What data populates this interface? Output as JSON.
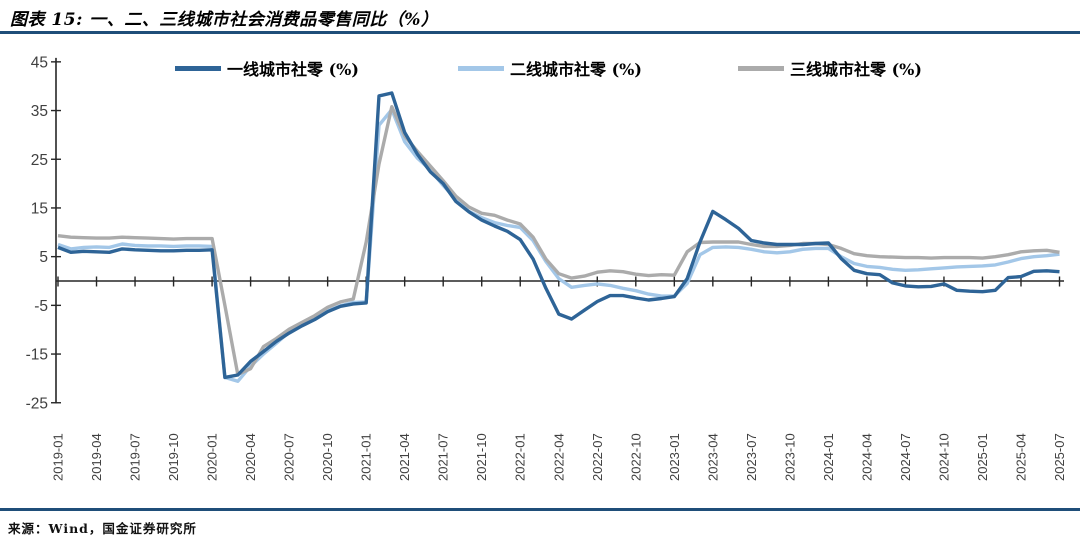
{
  "header": {
    "title": "图表 15:  一、二、三线城市社会消费品零售同比（%）"
  },
  "footer": {
    "source": "来源：Wind，国金证券研究所"
  },
  "colors": {
    "rule": "#1F4E79",
    "axis_line": "#262626",
    "tick_label": "#404040",
    "background": "#FFFFFF"
  },
  "chart_data": {
    "type": "line",
    "title": "一、二、三线城市社会消费品零售同比（%）",
    "xlabel": "",
    "ylabel": "",
    "ylim": [
      -25,
      45
    ],
    "y_ticks": [
      45,
      35,
      25,
      15,
      5,
      -5,
      -15,
      -25
    ],
    "grid": false,
    "legend_position": "top",
    "x_start": "2019-01",
    "x_end": "2025-07",
    "x_monthly_points": 79,
    "tick_every_months": 3,
    "x_tick_labels": [
      "2019-01",
      "2019-04",
      "2019-07",
      "2019-10",
      "2020-01",
      "2020-04",
      "2020-07",
      "2020-10",
      "2021-01",
      "2021-04",
      "2021-07",
      "2021-10",
      "2022-01",
      "2022-04",
      "2022-07",
      "2022-10",
      "2023-01",
      "2023-04",
      "2023-07",
      "2023-10",
      "2024-01",
      "2024-04",
      "2024-07",
      "2024-10",
      "2025-01",
      "2025-04",
      "2025-07"
    ],
    "series": [
      {
        "name": "一线城市社零 (%)",
        "color": "#2E6497",
        "z": 3,
        "values": [
          6.9,
          5.9,
          6.1,
          6.0,
          5.9,
          6.6,
          6.4,
          6.3,
          6.2,
          6.2,
          6.3,
          6.3,
          6.4,
          -19.8,
          -19.3,
          -16.5,
          -14.5,
          -12.4,
          -10.7,
          -9.2,
          -7.9,
          -6.3,
          -5.2,
          -4.7,
          -4.5,
          38.0,
          38.6,
          30.5,
          26.0,
          22.4,
          20.0,
          16.3,
          14.2,
          12.5,
          11.3,
          10.2,
          8.5,
          4.5,
          -1.5,
          -6.8,
          -7.8,
          -6.0,
          -4.2,
          -3.0,
          -3.0,
          -3.5,
          -3.9,
          -3.6,
          -3.2,
          0.5,
          8.0,
          14.3,
          12.6,
          10.8,
          8.3,
          7.8,
          7.5,
          7.5,
          7.5,
          7.7,
          7.8,
          4.6,
          2.2,
          1.5,
          1.3,
          -0.4,
          -1.0,
          -1.2,
          -1.1,
          -0.6,
          -1.9,
          -2.1,
          -2.2,
          -1.9,
          0.7,
          0.9,
          2.0,
          2.1,
          1.9
        ]
      },
      {
        "name": "二线城市社零 (%)",
        "color": "#A3C7E8",
        "z": 1,
        "values": [
          7.5,
          6.6,
          6.9,
          7.0,
          6.9,
          7.6,
          7.3,
          7.2,
          7.2,
          7.1,
          7.2,
          7.2,
          7.1,
          -19.8,
          -20.6,
          -17.5,
          -15.0,
          -12.8,
          -10.5,
          -9.1,
          -7.7,
          -6.1,
          -5.1,
          -4.4,
          -4.3,
          32.0,
          35.2,
          28.6,
          25.2,
          22.8,
          19.6,
          16.8,
          14.3,
          13.0,
          12.0,
          11.4,
          11.0,
          8.3,
          4.0,
          0.5,
          -1.3,
          -0.9,
          -0.6,
          -0.9,
          -1.5,
          -2.0,
          -2.7,
          -3.1,
          -3.1,
          -0.5,
          5.4,
          6.9,
          7.0,
          6.9,
          6.5,
          6.0,
          5.8,
          6.0,
          6.5,
          6.7,
          6.7,
          5.0,
          3.6,
          3.0,
          2.8,
          2.4,
          2.2,
          2.3,
          2.5,
          2.7,
          2.9,
          3.0,
          3.1,
          3.3,
          3.9,
          4.6,
          5.0,
          5.2,
          5.5
        ]
      },
      {
        "name": "三线城市社零 (%)",
        "color": "#ABABAB",
        "z": 2,
        "values": [
          9.3,
          9.0,
          8.9,
          8.8,
          8.8,
          9.0,
          8.9,
          8.8,
          8.7,
          8.6,
          8.7,
          8.7,
          8.7,
          -5.0,
          -19.2,
          -18.0,
          -13.5,
          -11.8,
          -9.9,
          -8.5,
          -7.1,
          -5.4,
          -4.3,
          -3.7,
          8.0,
          24.0,
          35.8,
          29.8,
          26.6,
          23.6,
          20.6,
          17.4,
          15.2,
          13.9,
          13.5,
          12.5,
          11.7,
          9.0,
          4.5,
          1.5,
          0.6,
          1.0,
          1.8,
          2.1,
          1.9,
          1.4,
          1.1,
          1.3,
          1.2,
          6.0,
          7.9,
          8.0,
          8.0,
          8.0,
          7.5,
          7.1,
          7.1,
          7.3,
          7.7,
          7.7,
          7.5,
          6.7,
          5.6,
          5.2,
          5.0,
          4.9,
          4.8,
          4.8,
          4.7,
          4.8,
          4.8,
          4.8,
          4.7,
          5.0,
          5.4,
          6.0,
          6.2,
          6.3,
          5.9
        ]
      }
    ]
  }
}
